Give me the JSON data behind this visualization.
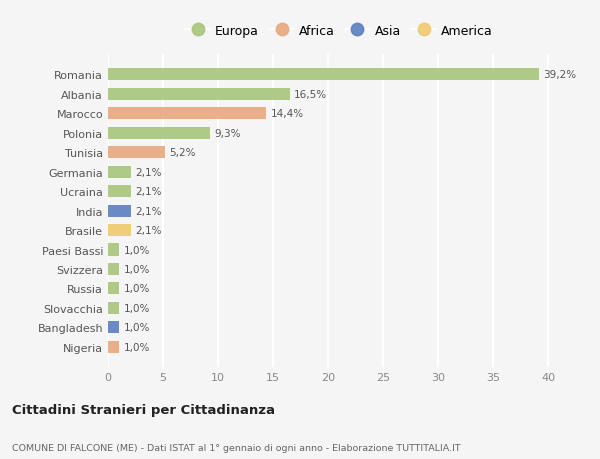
{
  "countries": [
    "Romania",
    "Albania",
    "Marocco",
    "Polonia",
    "Tunisia",
    "Germania",
    "Ucraina",
    "India",
    "Brasile",
    "Paesi Bassi",
    "Svizzera",
    "Russia",
    "Slovacchia",
    "Bangladesh",
    "Nigeria"
  ],
  "values": [
    39.2,
    16.5,
    14.4,
    9.3,
    5.2,
    2.1,
    2.1,
    2.1,
    2.1,
    1.0,
    1.0,
    1.0,
    1.0,
    1.0,
    1.0
  ],
  "labels": [
    "39,2%",
    "16,5%",
    "14,4%",
    "9,3%",
    "5,2%",
    "2,1%",
    "2,1%",
    "2,1%",
    "2,1%",
    "1,0%",
    "1,0%",
    "1,0%",
    "1,0%",
    "1,0%",
    "1,0%"
  ],
  "continent": [
    "Europa",
    "Europa",
    "Africa",
    "Europa",
    "Africa",
    "Europa",
    "Europa",
    "Asia",
    "America",
    "Europa",
    "Europa",
    "Europa",
    "Europa",
    "Asia",
    "Africa"
  ],
  "colors": {
    "Europa": "#a8c57a",
    "Africa": "#e8a87c",
    "Asia": "#5b7fbf",
    "America": "#f0c96e"
  },
  "legend_order": [
    "Europa",
    "Africa",
    "Asia",
    "America"
  ],
  "bg_color": "#f5f5f5",
  "title": "Cittadini Stranieri per Cittadinanza",
  "subtitle": "COMUNE DI FALCONE (ME) - Dati ISTAT al 1° gennaio di ogni anno - Elaborazione TUTTITALIA.IT",
  "xlim": [
    0,
    42
  ],
  "xticks": [
    0,
    5,
    10,
    15,
    20,
    25,
    30,
    35,
    40
  ]
}
